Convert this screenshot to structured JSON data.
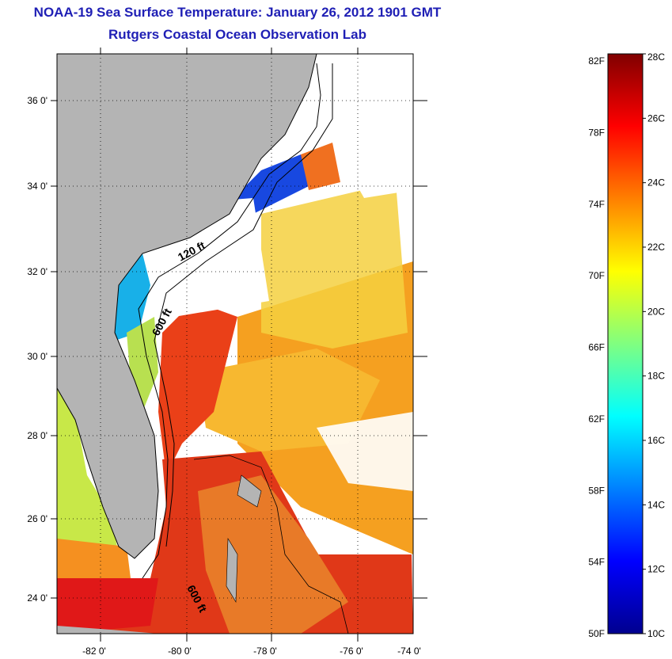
{
  "header": {
    "title": "NOAA-19 Sea Surface Temperature:  January 26, 2012 1901 GMT",
    "subtitle": "Rutgers Coastal Ocean Observation Lab"
  },
  "map": {
    "lat_labels": [
      "36 0'",
      "34 0'",
      "32 0'",
      "30 0'",
      "28 0'",
      "26 0'",
      "24 0'"
    ],
    "lon_labels": [
      "-82 0'",
      "-80 0'",
      "-78 0'",
      "-76 0'",
      "-74 0'"
    ],
    "contour_labels": [
      "120 ft",
      "600 ft",
      "600 ft"
    ],
    "colors": {
      "land": "#b4b4b4",
      "cloud": "#ffffff"
    }
  },
  "colorbar": {
    "f_labels": [
      "82F",
      "78F",
      "74F",
      "70F",
      "66F",
      "62F",
      "58F",
      "54F",
      "50F"
    ],
    "c_labels": [
      "28C",
      "26C",
      "24C",
      "22C",
      "20C",
      "18C",
      "16C",
      "14C",
      "12C",
      "10C"
    ],
    "range_c": [
      10,
      28
    ],
    "colormap": [
      "#00008f",
      "#0000ff",
      "#0080ff",
      "#00ffff",
      "#80ff80",
      "#ffff00",
      "#ff8000",
      "#ff0000",
      "#800000"
    ]
  }
}
